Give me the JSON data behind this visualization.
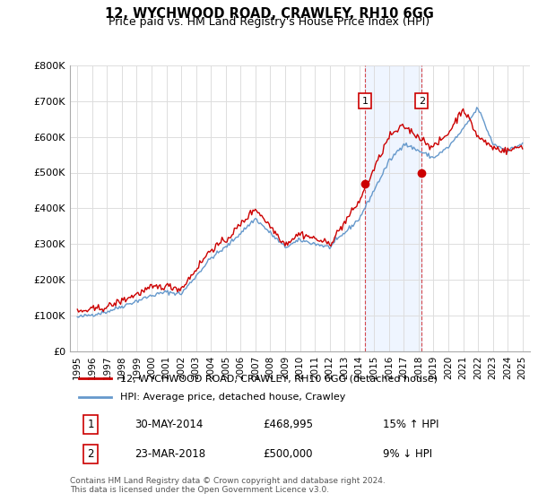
{
  "title1": "12, WYCHWOOD ROAD, CRAWLEY, RH10 6GG",
  "title2": "Price paid vs. HM Land Registry's House Price Index (HPI)",
  "ylabel_values": [
    "£0",
    "£100K",
    "£200K",
    "£300K",
    "£400K",
    "£500K",
    "£600K",
    "£700K",
    "£800K"
  ],
  "yticks": [
    0,
    100000,
    200000,
    300000,
    400000,
    500000,
    600000,
    700000,
    800000
  ],
  "xlim_start": 1994.5,
  "xlim_end": 2025.5,
  "legend_line1": "12, WYCHWOOD ROAD, CRAWLEY, RH10 6GG (detached house)",
  "legend_line2": "HPI: Average price, detached house, Crawley",
  "sale1_label": "1",
  "sale1_date": "30-MAY-2014",
  "sale1_price": "£468,995",
  "sale1_hpi": "15% ↑ HPI",
  "sale2_label": "2",
  "sale2_date": "23-MAR-2018",
  "sale2_price": "£500,000",
  "sale2_hpi": "9% ↓ HPI",
  "footnote": "Contains HM Land Registry data © Crown copyright and database right 2024.\nThis data is licensed under the Open Government Licence v3.0.",
  "sale1_year": 2014.4,
  "sale1_value": 468995,
  "sale2_year": 2018.2,
  "sale2_value": 500000,
  "line_color_red": "#cc0000",
  "line_color_blue": "#6699cc",
  "shade_color": "#cce0ff",
  "grid_color": "#dddddd",
  "bg_color": "#ffffff"
}
